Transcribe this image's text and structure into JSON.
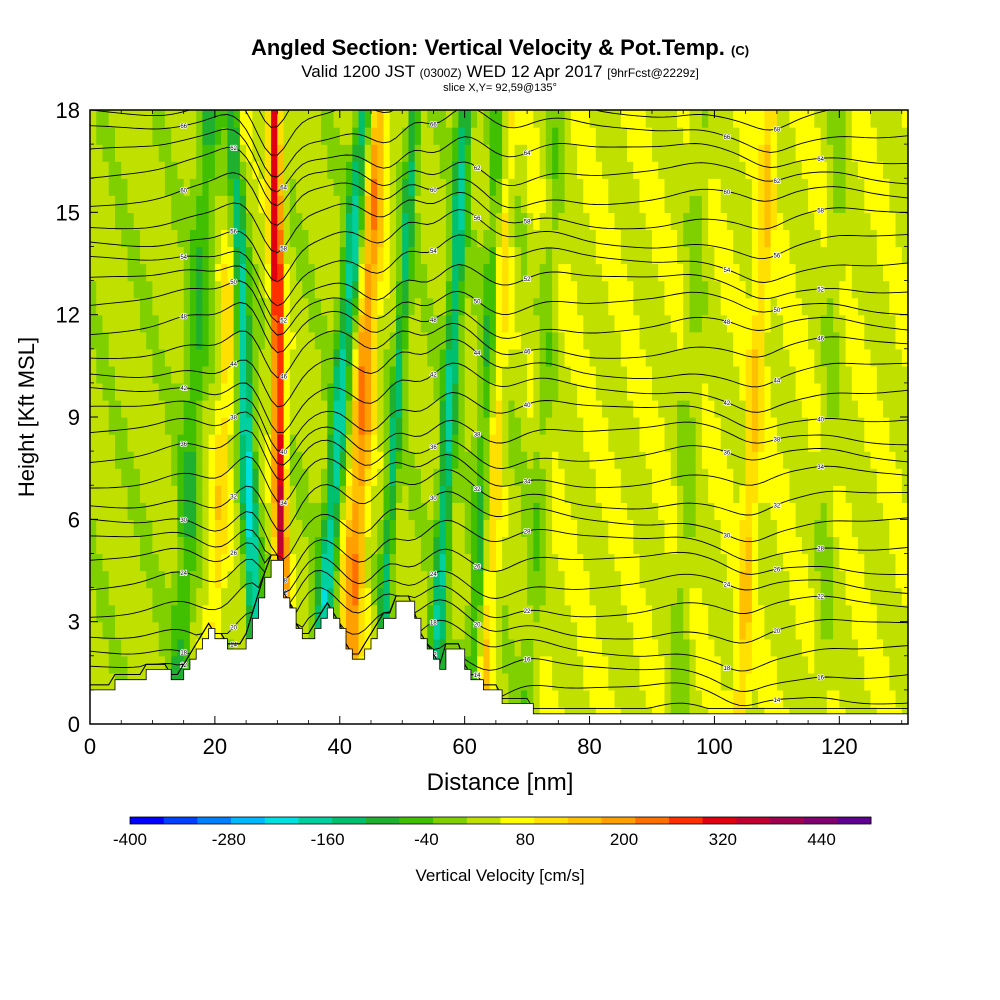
{
  "title": {
    "main": "Angled Section: Vertical Velocity & Pot.Temp.",
    "main_suffix": "(C)",
    "valid_prefix": "Valid 1200 JST",
    "valid_zulu": "(0300Z)",
    "valid_date": "WED 12 Apr 2017",
    "valid_fcst": "[9hrFcst@2229z]",
    "slice": "slice X,Y= 92,59@135°"
  },
  "chart_data": {
    "type": "heatmap",
    "xlabel": "Distance [nm]",
    "ylabel": "Height [Kft MSL]",
    "xlim": [
      0,
      131
    ],
    "ylim": [
      0,
      18
    ],
    "x_ticks": [
      0,
      20,
      40,
      60,
      80,
      100,
      120
    ],
    "y_ticks": [
      0,
      3,
      6,
      9,
      12,
      15,
      18
    ],
    "colorbar": {
      "label": "Vertical Velocity [cm/s]",
      "tick_labels": [
        "-400",
        "-280",
        "-160",
        "-40",
        "80",
        "200",
        "320",
        "440"
      ],
      "tick_values": [
        -400,
        -280,
        -160,
        -40,
        80,
        200,
        320,
        440
      ],
      "range": [
        -400,
        500
      ],
      "colors": [
        "#0000ff",
        "#0040ff",
        "#0080ff",
        "#00b8ff",
        "#00e0e0",
        "#00d0a0",
        "#00c070",
        "#20b030",
        "#40c000",
        "#80d000",
        "#c0e000",
        "#ffff00",
        "#ffe000",
        "#ffc000",
        "#ffa000",
        "#ff7000",
        "#ff3000",
        "#e00010",
        "#c00030",
        "#a00050",
        "#800070",
        "#600090"
      ]
    },
    "terrain_kft": [
      [
        0,
        1.0
      ],
      [
        4,
        1.0
      ],
      [
        4,
        1.3
      ],
      [
        9,
        1.3
      ],
      [
        9,
        1.6
      ],
      [
        13,
        1.6
      ],
      [
        13,
        1.3
      ],
      [
        15,
        1.3
      ],
      [
        15,
        1.6
      ],
      [
        16,
        1.6
      ],
      [
        16,
        1.9
      ],
      [
        17,
        1.9
      ],
      [
        17,
        2.2
      ],
      [
        18,
        2.2
      ],
      [
        18,
        2.5
      ],
      [
        19,
        2.5
      ],
      [
        19,
        2.8
      ],
      [
        20,
        2.8
      ],
      [
        20,
        2.5
      ],
      [
        22,
        2.5
      ],
      [
        22,
        2.2
      ],
      [
        25,
        2.2
      ],
      [
        25,
        2.5
      ],
      [
        26,
        2.5
      ],
      [
        26,
        3.1
      ],
      [
        27,
        3.1
      ],
      [
        27,
        3.7
      ],
      [
        28,
        3.7
      ],
      [
        28,
        4.3
      ],
      [
        29,
        4.3
      ],
      [
        29,
        4.8
      ],
      [
        31,
        4.8
      ],
      [
        31,
        3.7
      ],
      [
        32,
        3.7
      ],
      [
        32,
        3.4
      ],
      [
        33,
        3.4
      ],
      [
        33,
        2.8
      ],
      [
        34,
        2.8
      ],
      [
        34,
        2.5
      ],
      [
        36,
        2.5
      ],
      [
        36,
        2.8
      ],
      [
        37,
        2.8
      ],
      [
        37,
        3.1
      ],
      [
        38,
        3.1
      ],
      [
        38,
        3.4
      ],
      [
        39,
        3.4
      ],
      [
        39,
        3.1
      ],
      [
        40,
        3.1
      ],
      [
        40,
        2.8
      ],
      [
        41,
        2.8
      ],
      [
        41,
        2.2
      ],
      [
        42,
        2.2
      ],
      [
        42,
        1.9
      ],
      [
        44,
        1.9
      ],
      [
        44,
        2.2
      ],
      [
        45,
        2.2
      ],
      [
        45,
        2.5
      ],
      [
        46,
        2.5
      ],
      [
        46,
        2.8
      ],
      [
        47,
        2.8
      ],
      [
        47,
        3.1
      ],
      [
        49,
        3.1
      ],
      [
        49,
        3.6
      ],
      [
        52,
        3.6
      ],
      [
        52,
        3.1
      ],
      [
        53,
        3.1
      ],
      [
        53,
        2.5
      ],
      [
        54,
        2.5
      ],
      [
        54,
        2.2
      ],
      [
        55,
        2.2
      ],
      [
        55,
        1.9
      ],
      [
        56,
        1.9
      ],
      [
        56,
        1.6
      ],
      [
        57,
        1.6
      ],
      [
        57,
        2.2
      ],
      [
        60,
        2.2
      ],
      [
        60,
        1.6
      ],
      [
        61,
        1.6
      ],
      [
        61,
        1.3
      ],
      [
        63,
        1.3
      ],
      [
        63,
        1.0
      ],
      [
        66,
        1.0
      ],
      [
        66,
        0.6
      ],
      [
        71,
        0.6
      ],
      [
        71,
        0.3
      ],
      [
        131,
        0.3
      ]
    ],
    "velocity_bands_cm_s": [
      {
        "x_base": 14,
        "lean_nm": 5,
        "width_nm": 3.5,
        "value": -100
      },
      {
        "x_base": 19,
        "lean_nm": 5,
        "width_nm": 3,
        "value": 90
      },
      {
        "x_base": 27,
        "lean_nm": -4,
        "width_nm": 2.5,
        "value": -220
      },
      {
        "x_base": 31,
        "lean_nm": -1.5,
        "width_nm": 2,
        "value": 300
      },
      {
        "x_base": 36,
        "lean_nm": 8,
        "width_nm": 3,
        "value": -200
      },
      {
        "x_base": 41,
        "lean_nm": 5,
        "width_nm": 3.5,
        "value": 180
      },
      {
        "x_base": 46,
        "lean_nm": 6,
        "width_nm": 2,
        "value": -150
      },
      {
        "x_base": 55,
        "lean_nm": 5,
        "width_nm": 2.5,
        "value": -180
      },
      {
        "x_base": 61,
        "lean_nm": 5,
        "width_nm": 3,
        "value": -110
      },
      {
        "x_base": 63,
        "lean_nm": 4,
        "width_nm": 2.5,
        "value": 120
      },
      {
        "x_base": 70,
        "lean_nm": 5,
        "width_nm": 3,
        "value": -60
      },
      {
        "x_base": 94,
        "lean_nm": 4,
        "width_nm": 3,
        "value": -50
      },
      {
        "x_base": 104,
        "lean_nm": 5,
        "width_nm": 2.5,
        "value": 90
      },
      {
        "x_base": 117,
        "lean_nm": 3,
        "width_nm": 3,
        "value": -40
      }
    ],
    "potential_temperature_C": {
      "levels": [
        12,
        14,
        16,
        18,
        20,
        22,
        24,
        26,
        28,
        30,
        32,
        34,
        36,
        38,
        40,
        42,
        44,
        46,
        48,
        50,
        52,
        54,
        56,
        58,
        60,
        62,
        64,
        66,
        68,
        70
      ]
    }
  }
}
